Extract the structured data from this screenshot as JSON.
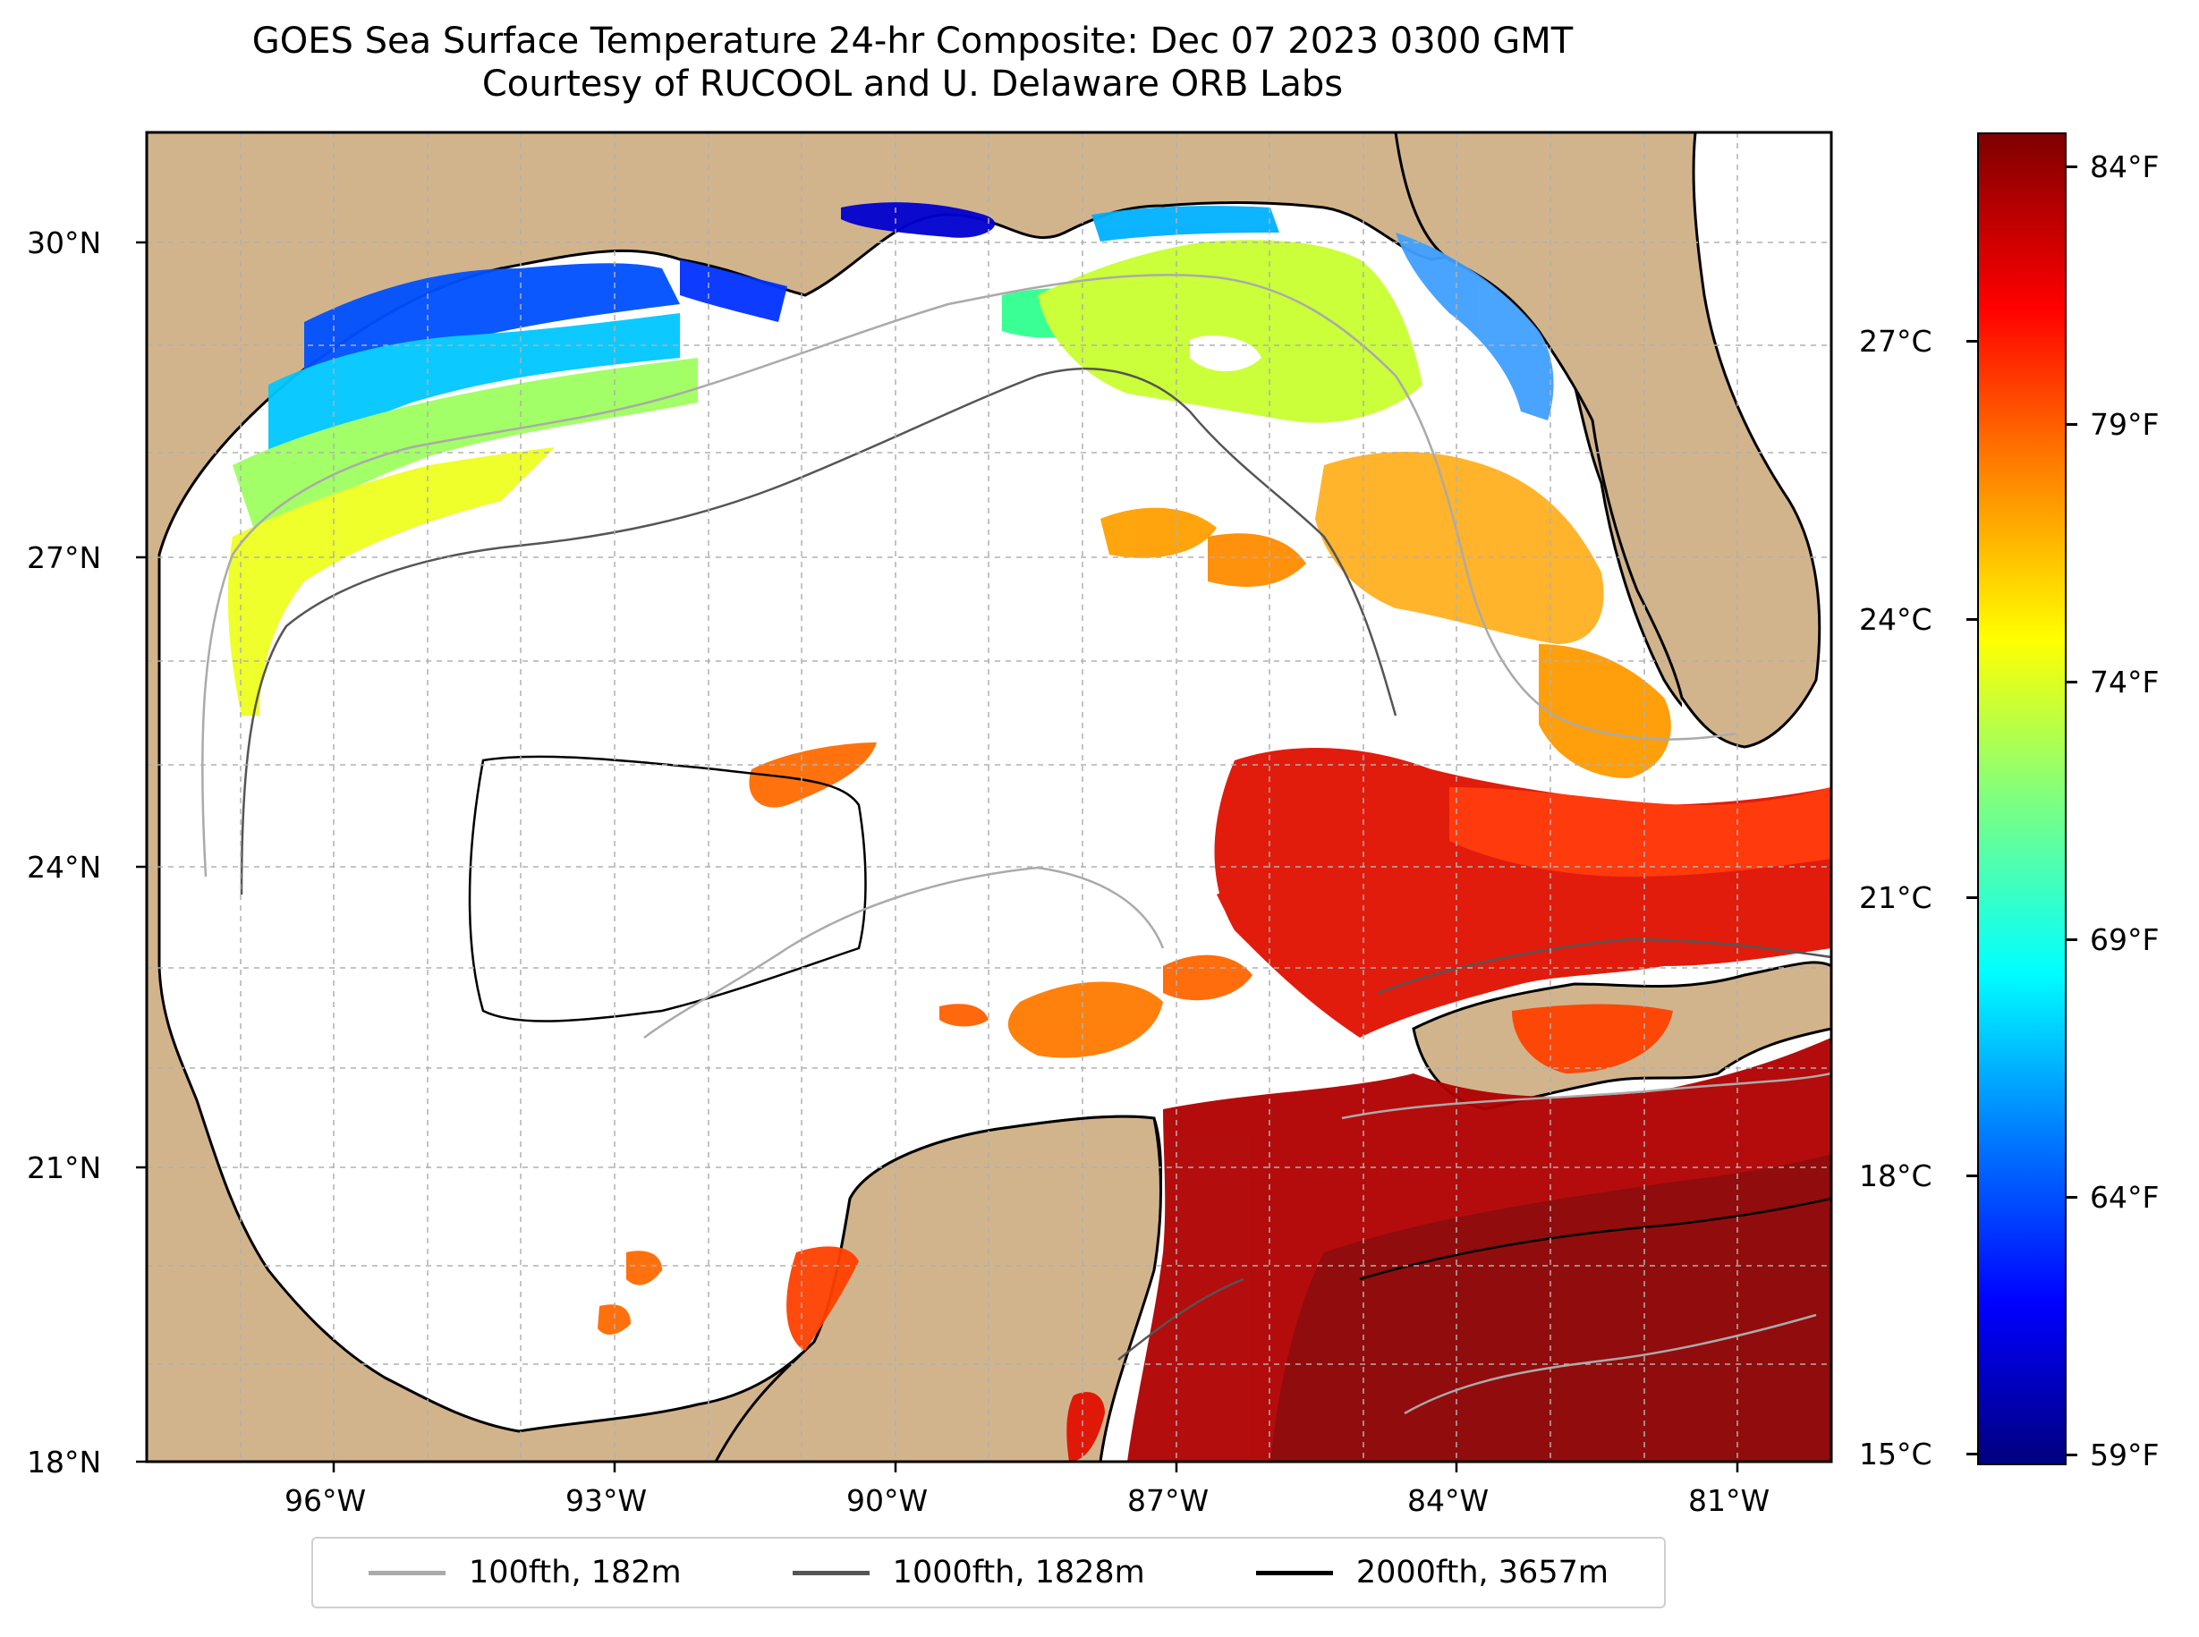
{
  "title": {
    "line1": "GOES Sea Surface Temperature 24-hr Composite: Dec 07 2023 0300 GMT",
    "line2": "Courtesy of RUCOOL and U. Delaware ORB Labs"
  },
  "map": {
    "lon_labels": [
      "96°W",
      "93°W",
      "90°W",
      "87°W",
      "84°W",
      "81°W"
    ],
    "lat_labels": [
      "30°N",
      "27°N",
      "24°N",
      "21°N",
      "18°N"
    ],
    "lon_range": [
      -98,
      -80
    ],
    "lat_range": [
      18,
      31
    ],
    "land_color": "#d2b48c",
    "ocean_nodata_color": "#ffffff",
    "lake_color": "#9bb6e0"
  },
  "legend": [
    {
      "label": "100fth, 182m",
      "color": "#aaaaaa"
    },
    {
      "label": "1000fth, 1828m",
      "color": "#555555"
    },
    {
      "label": "2000fth, 3657m",
      "color": "#000000"
    }
  ],
  "colorbar": {
    "celsius_labels": [
      "27°C",
      "24°C",
      "21°C",
      "18°C",
      "15°C"
    ],
    "fahrenheit_labels": [
      "84°F",
      "79°F",
      "74°F",
      "69°F",
      "64°F",
      "59°F"
    ],
    "colormap": "jet",
    "range_f": [
      59,
      85
    ]
  }
}
